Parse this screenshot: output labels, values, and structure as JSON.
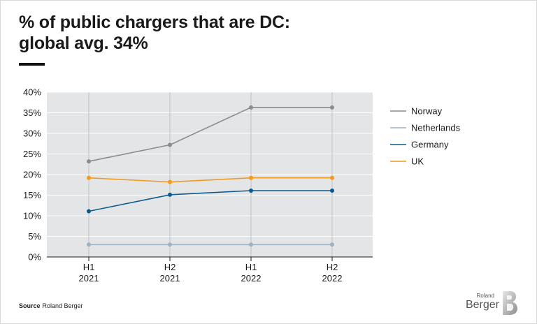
{
  "title_line1": "% of public chargers that are DC:",
  "title_line2": "global avg. 34%",
  "source_label": "Source",
  "source_text": "Roland Berger",
  "logo_small": "Roland",
  "logo_big": "Berger",
  "chart_data": {
    "type": "line",
    "categories": [
      [
        "H1",
        "2021"
      ],
      [
        "H2",
        "2021"
      ],
      [
        "H1",
        "2022"
      ],
      [
        "H2",
        "2022"
      ]
    ],
    "ylim": [
      0,
      40
    ],
    "yticks": [
      0,
      5,
      10,
      15,
      20,
      25,
      30,
      35,
      40
    ],
    "ytick_labels": [
      "0%",
      "5%",
      "10%",
      "15%",
      "20%",
      "25%",
      "30%",
      "35%",
      "40%"
    ],
    "legend_position": "right",
    "series": [
      {
        "name": "Norway",
        "color": "#8a8c8e",
        "values": [
          23.2,
          27.2,
          36.3,
          36.3
        ]
      },
      {
        "name": "Netherlands",
        "color": "#9cb3c6",
        "values": [
          3.0,
          3.0,
          3.0,
          3.0
        ]
      },
      {
        "name": "Germany",
        "color": "#0d5a8c",
        "values": [
          11.1,
          15.1,
          16.1,
          16.1
        ]
      },
      {
        "name": "UK",
        "color": "#f39a1e",
        "values": [
          19.2,
          18.2,
          19.2,
          19.2
        ]
      }
    ],
    "colors": {
      "plot_bg": "#e4e5e7",
      "grid": "#ffffff",
      "vgrid": "#bfc1c4",
      "axis": "#1a1a1a"
    }
  }
}
